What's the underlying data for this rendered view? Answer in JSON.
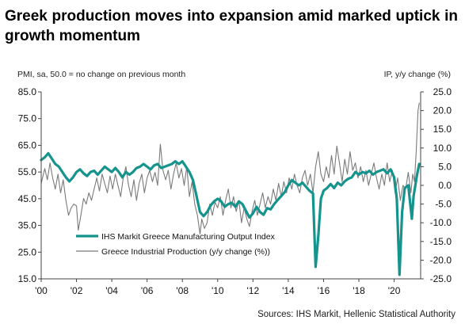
{
  "headline": "Greek production moves into expansion amid marked uptick in growth momentum",
  "chart_data": {
    "type": "line",
    "left_axis_label": "PMI, sa, 50.0 = no change on previous month",
    "right_axis_label": "IP, y/y change (%)",
    "source": "Sources: IHS Markit, Hellenic Statistical Authority",
    "x_tick_labels": [
      "'00",
      "'02",
      "'04",
      "'06",
      "'08",
      "'10",
      "'12",
      "'14",
      "'16",
      "'18",
      "'20"
    ],
    "x_tick_years": [
      2000,
      2002,
      2004,
      2006,
      2008,
      2010,
      2012,
      2014,
      2016,
      2018,
      2020
    ],
    "xlim": [
      2000.0,
      2021.5
    ],
    "left_ylim": [
      15,
      85
    ],
    "left_ticks": [
      "15.0",
      "25.0",
      "35.0",
      "45.0",
      "55.0",
      "65.0",
      "75.0",
      "85.0"
    ],
    "right_ylim": [
      -25,
      25
    ],
    "right_ticks": [
      "-25.0",
      "-20.0",
      "-15.0",
      "-10.0",
      "-5.0",
      "0.0",
      "5.0",
      "10.0",
      "15.0",
      "20.0",
      "25.0"
    ],
    "series": [
      {
        "name": "IHS Markit Greece Manufacturing Output Index",
        "axis": "left",
        "color": "#15938d",
        "points": [
          [
            2000.0,
            59.5
          ],
          [
            2000.2,
            60.5
          ],
          [
            2000.4,
            62
          ],
          [
            2000.6,
            60
          ],
          [
            2000.8,
            58
          ],
          [
            2001.0,
            57
          ],
          [
            2001.2,
            55
          ],
          [
            2001.4,
            53
          ],
          [
            2001.6,
            51.5
          ],
          [
            2001.8,
            53
          ],
          [
            2002.0,
            55
          ],
          [
            2002.2,
            56
          ],
          [
            2002.4,
            54.5
          ],
          [
            2002.6,
            53.5
          ],
          [
            2002.8,
            55
          ],
          [
            2003.0,
            55.5
          ],
          [
            2003.2,
            54
          ],
          [
            2003.4,
            55.5
          ],
          [
            2003.6,
            57
          ],
          [
            2003.8,
            56
          ],
          [
            2004.0,
            55
          ],
          [
            2004.2,
            56.5
          ],
          [
            2004.4,
            55
          ],
          [
            2004.6,
            53
          ],
          [
            2004.8,
            55
          ],
          [
            2005.0,
            54
          ],
          [
            2005.2,
            55
          ],
          [
            2005.4,
            56.5
          ],
          [
            2005.6,
            57
          ],
          [
            2005.8,
            58
          ],
          [
            2006.0,
            57
          ],
          [
            2006.2,
            56
          ],
          [
            2006.4,
            57.5
          ],
          [
            2006.6,
            58
          ],
          [
            2006.8,
            56.5
          ],
          [
            2007.0,
            57
          ],
          [
            2007.2,
            57.5
          ],
          [
            2007.4,
            58
          ],
          [
            2007.6,
            59
          ],
          [
            2007.8,
            58
          ],
          [
            2008.0,
            59
          ],
          [
            2008.2,
            57
          ],
          [
            2008.4,
            55
          ],
          [
            2008.6,
            52
          ],
          [
            2008.8,
            46
          ],
          [
            2009.0,
            40
          ],
          [
            2009.2,
            38.5
          ],
          [
            2009.4,
            40
          ],
          [
            2009.6,
            42.5
          ],
          [
            2009.8,
            44
          ],
          [
            2010.0,
            45
          ],
          [
            2010.2,
            44
          ],
          [
            2010.4,
            42
          ],
          [
            2010.6,
            43
          ],
          [
            2010.8,
            43.5
          ],
          [
            2011.0,
            42
          ],
          [
            2011.2,
            44
          ],
          [
            2011.4,
            43
          ],
          [
            2011.6,
            40.5
          ],
          [
            2011.8,
            38
          ],
          [
            2012.0,
            39.5
          ],
          [
            2012.2,
            42
          ],
          [
            2012.4,
            40
          ],
          [
            2012.6,
            39
          ],
          [
            2012.8,
            41.5
          ],
          [
            2013.0,
            41
          ],
          [
            2013.2,
            43
          ],
          [
            2013.4,
            44.5
          ],
          [
            2013.6,
            46
          ],
          [
            2013.8,
            47.5
          ],
          [
            2014.0,
            50
          ],
          [
            2014.2,
            52
          ],
          [
            2014.4,
            51
          ],
          [
            2014.6,
            50
          ],
          [
            2014.8,
            51
          ],
          [
            2015.0,
            49.5
          ],
          [
            2015.2,
            48
          ],
          [
            2015.4,
            47
          ],
          [
            2015.55,
            19.5
          ],
          [
            2015.7,
            31
          ],
          [
            2015.85,
            45
          ],
          [
            2016.0,
            48
          ],
          [
            2016.2,
            49
          ],
          [
            2016.4,
            50.5
          ],
          [
            2016.6,
            49
          ],
          [
            2016.8,
            51
          ],
          [
            2017.0,
            50
          ],
          [
            2017.2,
            51.5
          ],
          [
            2017.4,
            52.5
          ],
          [
            2017.6,
            53
          ],
          [
            2017.8,
            55
          ],
          [
            2018.0,
            54
          ],
          [
            2018.2,
            55
          ],
          [
            2018.4,
            54.5
          ],
          [
            2018.6,
            55.5
          ],
          [
            2018.8,
            54
          ],
          [
            2019.0,
            55
          ],
          [
            2019.2,
            55.5
          ],
          [
            2019.4,
            56
          ],
          [
            2019.6,
            54.5
          ],
          [
            2019.8,
            56
          ],
          [
            2020.0,
            53
          ],
          [
            2020.15,
            45
          ],
          [
            2020.3,
            16.5
          ],
          [
            2020.45,
            40
          ],
          [
            2020.6,
            49
          ],
          [
            2020.8,
            50
          ],
          [
            2021.0,
            37.5
          ],
          [
            2021.1,
            46
          ],
          [
            2021.2,
            50
          ],
          [
            2021.3,
            54
          ],
          [
            2021.42,
            58
          ]
        ]
      },
      {
        "name": "Greece Industrial Production (y/y change (%))",
        "axis": "right",
        "color": "#7a7a7a",
        "points": [
          [
            2000.0,
            0.5
          ],
          [
            2000.2,
            4.5
          ],
          [
            2000.35,
            1.5
          ],
          [
            2000.5,
            6
          ],
          [
            2000.65,
            2
          ],
          [
            2000.8,
            -1
          ],
          [
            2000.95,
            3
          ],
          [
            2001.1,
            -2
          ],
          [
            2001.25,
            1.5
          ],
          [
            2001.4,
            -4
          ],
          [
            2001.55,
            -8
          ],
          [
            2001.7,
            -6
          ],
          [
            2001.85,
            -5
          ],
          [
            2002.0,
            -5.5
          ],
          [
            2002.1,
            -12
          ],
          [
            2002.25,
            -8
          ],
          [
            2002.4,
            -3.5
          ],
          [
            2002.55,
            -5
          ],
          [
            2002.7,
            -2
          ],
          [
            2002.85,
            -4
          ],
          [
            2003.0,
            -1
          ],
          [
            2003.15,
            2
          ],
          [
            2003.3,
            -1.5
          ],
          [
            2003.45,
            3
          ],
          [
            2003.6,
            0.5
          ],
          [
            2003.75,
            -2
          ],
          [
            2003.9,
            2.5
          ],
          [
            2004.05,
            -1
          ],
          [
            2004.2,
            3
          ],
          [
            2004.35,
            0
          ],
          [
            2004.5,
            -3
          ],
          [
            2004.65,
            2
          ],
          [
            2004.8,
            5
          ],
          [
            2004.95,
            0
          ],
          [
            2005.1,
            -3
          ],
          [
            2005.25,
            1.5
          ],
          [
            2005.4,
            -4
          ],
          [
            2005.55,
            0.5
          ],
          [
            2005.7,
            3
          ],
          [
            2005.85,
            -2
          ],
          [
            2006.0,
            2
          ],
          [
            2006.15,
            4
          ],
          [
            2006.3,
            1
          ],
          [
            2006.45,
            3.5
          ],
          [
            2006.6,
            0
          ],
          [
            2006.75,
            11
          ],
          [
            2006.9,
            4
          ],
          [
            2007.05,
            1.5
          ],
          [
            2007.2,
            4
          ],
          [
            2007.35,
            -1
          ],
          [
            2007.5,
            3
          ],
          [
            2007.65,
            6
          ],
          [
            2007.8,
            2
          ],
          [
            2007.95,
            4.5
          ],
          [
            2008.1,
            0
          ],
          [
            2008.25,
            5
          ],
          [
            2008.4,
            -3
          ],
          [
            2008.55,
            1
          ],
          [
            2008.7,
            -5
          ],
          [
            2008.85,
            -8
          ],
          [
            2009.0,
            -13
          ],
          [
            2009.1,
            -9
          ],
          [
            2009.25,
            -11.5
          ],
          [
            2009.4,
            -10
          ],
          [
            2009.55,
            -5
          ],
          [
            2009.7,
            -8
          ],
          [
            2009.85,
            -4.5
          ],
          [
            2010.0,
            -6
          ],
          [
            2010.15,
            -3
          ],
          [
            2010.3,
            -8
          ],
          [
            2010.45,
            -4
          ],
          [
            2010.6,
            -1
          ],
          [
            2010.75,
            -6
          ],
          [
            2010.9,
            -3
          ],
          [
            2011.05,
            -7
          ],
          [
            2011.2,
            -4
          ],
          [
            2011.35,
            -10
          ],
          [
            2011.5,
            -6
          ],
          [
            2011.65,
            -9
          ],
          [
            2011.8,
            -11
          ],
          [
            2011.95,
            -7
          ],
          [
            2012.1,
            -4
          ],
          [
            2012.25,
            -8
          ],
          [
            2012.4,
            -5
          ],
          [
            2012.55,
            -2
          ],
          [
            2012.7,
            -6
          ],
          [
            2012.85,
            -3
          ],
          [
            2013.0,
            -5
          ],
          [
            2013.15,
            -1
          ],
          [
            2013.3,
            -4
          ],
          [
            2013.45,
            0.5
          ],
          [
            2013.6,
            -3
          ],
          [
            2013.75,
            1
          ],
          [
            2013.9,
            -2
          ],
          [
            2014.05,
            2
          ],
          [
            2014.2,
            -1
          ],
          [
            2014.35,
            3
          ],
          [
            2014.5,
            0
          ],
          [
            2014.65,
            -2
          ],
          [
            2014.8,
            2
          ],
          [
            2014.95,
            4
          ],
          [
            2015.1,
            0
          ],
          [
            2015.25,
            3
          ],
          [
            2015.4,
            -2
          ],
          [
            2015.55,
            5
          ],
          [
            2015.7,
            9
          ],
          [
            2015.85,
            3
          ],
          [
            2016.0,
            1
          ],
          [
            2016.15,
            5
          ],
          [
            2016.3,
            2
          ],
          [
            2016.45,
            8
          ],
          [
            2016.6,
            3
          ],
          [
            2016.75,
            10.5
          ],
          [
            2016.9,
            6
          ],
          [
            2017.05,
            1
          ],
          [
            2017.2,
            7
          ],
          [
            2017.35,
            3
          ],
          [
            2017.5,
            9
          ],
          [
            2017.65,
            4
          ],
          [
            2017.8,
            6
          ],
          [
            2017.95,
            2
          ],
          [
            2018.1,
            5
          ],
          [
            2018.25,
            1
          ],
          [
            2018.4,
            4
          ],
          [
            2018.55,
            0
          ],
          [
            2018.7,
            3
          ],
          [
            2018.85,
            6
          ],
          [
            2019.0,
            2
          ],
          [
            2019.15,
            -1
          ],
          [
            2019.3,
            3
          ],
          [
            2019.45,
            0
          ],
          [
            2019.6,
            6
          ],
          [
            2019.75,
            1
          ],
          [
            2019.9,
            4
          ],
          [
            2020.05,
            -2
          ],
          [
            2020.2,
            2
          ],
          [
            2020.35,
            -4
          ],
          [
            2020.5,
            0
          ],
          [
            2020.65,
            -1
          ],
          [
            2020.8,
            3.5
          ],
          [
            2020.95,
            -2
          ],
          [
            2021.05,
            3
          ],
          [
            2021.15,
            1
          ],
          [
            2021.25,
            9
          ],
          [
            2021.35,
            20
          ],
          [
            2021.42,
            22
          ]
        ]
      }
    ]
  }
}
